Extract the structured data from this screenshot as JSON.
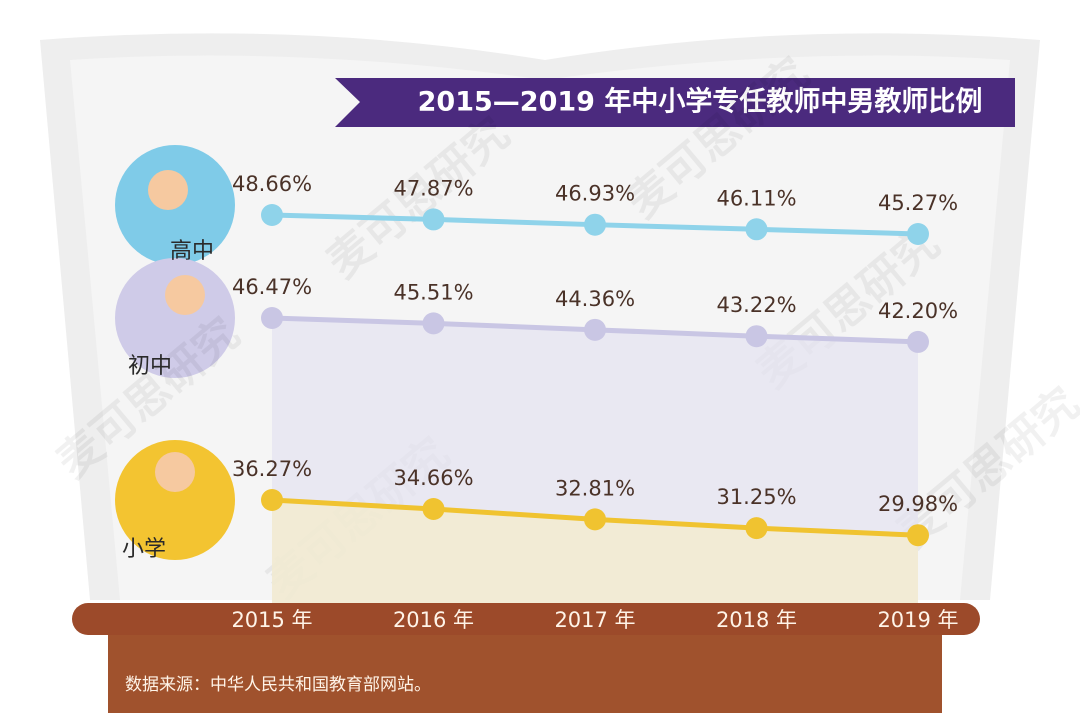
{
  "chart_data": {
    "type": "line",
    "title": "2015—2019 年中小学专任教师中男教师比例",
    "categories": [
      "2015 年",
      "2016 年",
      "2017 年",
      "2018 年",
      "2019 年"
    ],
    "series": [
      {
        "name": "高中",
        "color": "#8fd3ea",
        "values": [
          48.66,
          47.87,
          46.93,
          46.11,
          45.27
        ],
        "value_labels": [
          "48.66%",
          "47.87%",
          "46.93%",
          "46.11%",
          "45.27%"
        ]
      },
      {
        "name": "初中",
        "color": "#c9c6e4",
        "values": [
          46.47,
          45.51,
          44.36,
          43.22,
          42.2
        ],
        "value_labels": [
          "46.47%",
          "45.51%",
          "44.36%",
          "43.22%",
          "42.20%"
        ]
      },
      {
        "name": "小学",
        "color": "#f0c330",
        "values": [
          36.27,
          34.66,
          32.81,
          31.25,
          29.98
        ],
        "value_labels": [
          "36.27%",
          "34.66%",
          "32.81%",
          "31.25%",
          "29.98%"
        ]
      }
    ],
    "source": "数据来源：中华人民共和国教育部网站。",
    "watermark": "麦可思研究"
  }
}
